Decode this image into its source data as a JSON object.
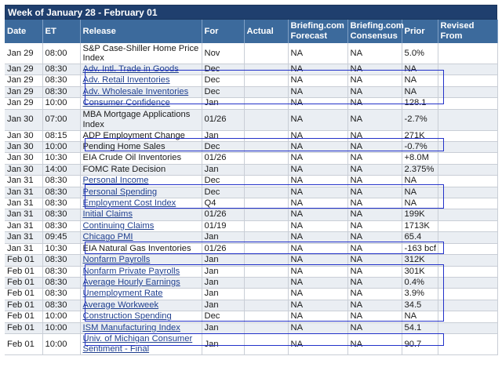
{
  "title": "Week of January 28 - February 01",
  "columns": {
    "date": "Date",
    "et": "ET",
    "release": "Release",
    "for": "For",
    "actual": "Actual",
    "forecast": "Briefing.com Forecast",
    "consensus": "Briefing.com Consensus",
    "prior": "Prior",
    "revised": "Revised From"
  },
  "rows": [
    {
      "date": "Jan 29",
      "et": "08:00",
      "release": "S&P Case-Shiller Home Price Index",
      "link": false,
      "for": "Nov",
      "actual": "",
      "forecast": "NA",
      "consensus": "NA",
      "prior": "5.0%",
      "revised": ""
    },
    {
      "date": "Jan 29",
      "et": "08:30",
      "release": "Adv. Intl. Trade in Goods",
      "link": true,
      "for": "Dec",
      "actual": "",
      "forecast": "NA",
      "consensus": "NA",
      "prior": "NA",
      "revised": ""
    },
    {
      "date": "Jan 29",
      "et": "08:30",
      "release": "Adv. Retail Inventories",
      "link": true,
      "for": "Dec",
      "actual": "",
      "forecast": "NA",
      "consensus": "NA",
      "prior": "NA",
      "revised": ""
    },
    {
      "date": "Jan 29",
      "et": "08:30",
      "release": "Adv. Wholesale Inventories",
      "link": true,
      "for": "Dec",
      "actual": "",
      "forecast": "NA",
      "consensus": "NA",
      "prior": "NA",
      "revised": ""
    },
    {
      "date": "Jan 29",
      "et": "10:00",
      "release": "Consumer Confidence",
      "link": true,
      "for": "Jan",
      "actual": "",
      "forecast": "NA",
      "consensus": "NA",
      "prior": "128.1",
      "revised": ""
    },
    {
      "date": "Jan 30",
      "et": "07:00",
      "release": "MBA Mortgage Applications Index",
      "link": false,
      "for": "01/26",
      "actual": "",
      "forecast": "NA",
      "consensus": "NA",
      "prior": "-2.7%",
      "revised": ""
    },
    {
      "date": "Jan 30",
      "et": "08:15",
      "release": "ADP Employment Change",
      "link": false,
      "for": "Jan",
      "actual": "",
      "forecast": "NA",
      "consensus": "NA",
      "prior": "271K",
      "revised": ""
    },
    {
      "date": "Jan 30",
      "et": "10:00",
      "release": "Pending Home Sales",
      "link": false,
      "for": "Dec",
      "actual": "",
      "forecast": "NA",
      "consensus": "NA",
      "prior": "-0.7%",
      "revised": ""
    },
    {
      "date": "Jan 30",
      "et": "10:30",
      "release": "EIA Crude Oil Inventories",
      "link": false,
      "for": "01/26",
      "actual": "",
      "forecast": "NA",
      "consensus": "NA",
      "prior": "+8.0M",
      "revised": ""
    },
    {
      "date": "Jan 30",
      "et": "14:00",
      "release": "FOMC Rate Decision",
      "link": false,
      "for": "Jan",
      "actual": "",
      "forecast": "NA",
      "consensus": "NA",
      "prior": "2.375%",
      "revised": ""
    },
    {
      "date": "Jan 31",
      "et": "08:30",
      "release": "Personal Income",
      "link": true,
      "for": "Dec",
      "actual": "",
      "forecast": "NA",
      "consensus": "NA",
      "prior": "NA",
      "revised": ""
    },
    {
      "date": "Jan 31",
      "et": "08:30",
      "release": "Personal Spending",
      "link": true,
      "for": "Dec",
      "actual": "",
      "forecast": "NA",
      "consensus": "NA",
      "prior": "NA",
      "revised": ""
    },
    {
      "date": "Jan 31",
      "et": "08:30",
      "release": "Employment Cost Index",
      "link": true,
      "for": "Q4",
      "actual": "",
      "forecast": "NA",
      "consensus": "NA",
      "prior": "NA",
      "revised": ""
    },
    {
      "date": "Jan 31",
      "et": "08:30",
      "release": "Initial Claims",
      "link": true,
      "for": "01/26",
      "actual": "",
      "forecast": "NA",
      "consensus": "NA",
      "prior": "199K",
      "revised": ""
    },
    {
      "date": "Jan 31",
      "et": "08:30",
      "release": "Continuing Claims",
      "link": true,
      "for": "01/19",
      "actual": "",
      "forecast": "NA",
      "consensus": "NA",
      "prior": "1713K",
      "revised": ""
    },
    {
      "date": "Jan 31",
      "et": "09:45",
      "release": "Chicago PMI",
      "link": true,
      "for": "Jan",
      "actual": "",
      "forecast": "NA",
      "consensus": "NA",
      "prior": "65.4",
      "revised": ""
    },
    {
      "date": "Jan 31",
      "et": "10:30",
      "release": "EIA Natural Gas Inventories",
      "link": false,
      "for": "01/26",
      "actual": "",
      "forecast": "NA",
      "consensus": "NA",
      "prior": "-163 bcf",
      "revised": ""
    },
    {
      "date": "Feb 01",
      "et": "08:30",
      "release": "Nonfarm Payrolls",
      "link": true,
      "for": "Jan",
      "actual": "",
      "forecast": "NA",
      "consensus": "NA",
      "prior": "312K",
      "revised": ""
    },
    {
      "date": "Feb 01",
      "et": "08:30",
      "release": "Nonfarm Private Payrolls",
      "link": true,
      "for": "Jan",
      "actual": "",
      "forecast": "NA",
      "consensus": "NA",
      "prior": "301K",
      "revised": ""
    },
    {
      "date": "Feb 01",
      "et": "08:30",
      "release": "Average Hourly Earnings",
      "link": true,
      "for": "Jan",
      "actual": "",
      "forecast": "NA",
      "consensus": "NA",
      "prior": "0.4%",
      "revised": ""
    },
    {
      "date": "Feb 01",
      "et": "08:30",
      "release": "Unemployment Rate",
      "link": true,
      "for": "Jan",
      "actual": "",
      "forecast": "NA",
      "consensus": "NA",
      "prior": "3.9%",
      "revised": ""
    },
    {
      "date": "Feb 01",
      "et": "08:30",
      "release": "Average Workweek",
      "link": true,
      "for": "Jan",
      "actual": "",
      "forecast": "NA",
      "consensus": "NA",
      "prior": "34.5",
      "revised": ""
    },
    {
      "date": "Feb 01",
      "et": "10:00",
      "release": "Construction Spending",
      "link": true,
      "for": "Dec",
      "actual": "",
      "forecast": "NA",
      "consensus": "NA",
      "prior": "NA",
      "revised": ""
    },
    {
      "date": "Feb 01",
      "et": "10:00",
      "release": "ISM Manufacturing Index",
      "link": true,
      "for": "Jan",
      "actual": "",
      "forecast": "NA",
      "consensus": "NA",
      "prior": "54.1",
      "revised": ""
    },
    {
      "date": "Feb 01",
      "et": "10:00",
      "release": "Univ. of Michigan Consumer Sentiment - Final",
      "link": true,
      "for": "Jan",
      "actual": "",
      "forecast": "NA",
      "consensus": "NA",
      "prior": "90.7",
      "revised": ""
    }
  ],
  "colors": {
    "title_bg": "#1f3f6e",
    "header_bg": "#3c6a9c",
    "row_alt": "#eaeef3",
    "link": "#1f3f8f",
    "highlight_box": "#2332c9"
  }
}
